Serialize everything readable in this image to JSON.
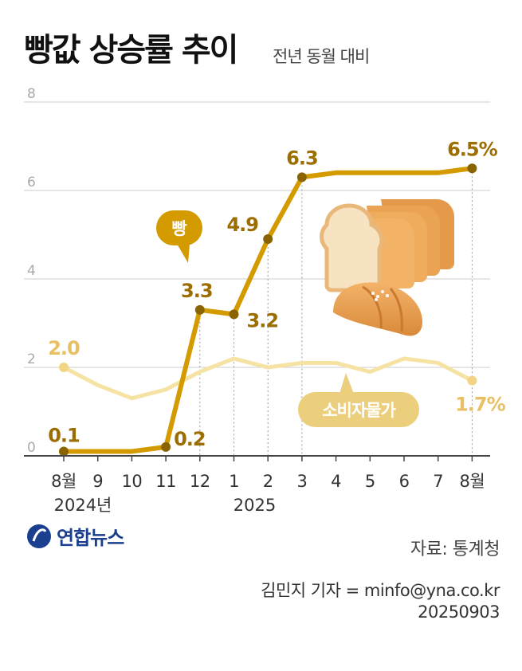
{
  "header": {
    "title": "빵값 상승률 추이",
    "subtitle": "전년 동월 대비"
  },
  "colors": {
    "bread": "#d39b00",
    "bread_text": "#9c6d00",
    "cpi": "#f6e3a4",
    "cpi_text": "#e8c063",
    "grid": "#cccccc",
    "axis": "#444444"
  },
  "chart_data": {
    "type": "line",
    "title": "빵값 상승률 추이",
    "subtitle": "전년 동월 대비",
    "categories": [
      "8월",
      "9",
      "10",
      "11",
      "12",
      "1",
      "2",
      "3",
      "4",
      "5",
      "6",
      "7",
      "8월"
    ],
    "year_labels": [
      "2024년",
      "2025"
    ],
    "y_ticks": [
      "0",
      "2",
      "4",
      "6",
      "8"
    ],
    "ylim": [
      0,
      8
    ],
    "series": [
      {
        "name": "빵",
        "values": [
          0.1,
          0.1,
          0.1,
          0.2,
          3.3,
          3.2,
          4.9,
          6.3,
          6.4,
          6.4,
          6.4,
          6.4,
          6.5
        ],
        "labels": [
          "0.1",
          "",
          "",
          "0.2",
          "3.3",
          "3.2",
          "4.9",
          "6.3",
          "",
          "",
          "",
          "",
          "6.5%"
        ]
      },
      {
        "name": "소비자물가",
        "values": [
          2.0,
          1.6,
          1.3,
          1.5,
          1.9,
          2.2,
          2.0,
          2.1,
          2.1,
          1.9,
          2.2,
          2.1,
          1.7
        ],
        "labels": [
          "2.0",
          "",
          "",
          "",
          "",
          "",
          "",
          "",
          "",
          "",
          "",
          "",
          "1.7%"
        ]
      }
    ]
  },
  "logo": {
    "text": "연합뉴스",
    "icon": "yonhap-logo-icon"
  },
  "footer": {
    "source": "자료: 통계청",
    "credit": "김민지 기자 = minfo@yna.co.kr",
    "date": "20250903"
  }
}
